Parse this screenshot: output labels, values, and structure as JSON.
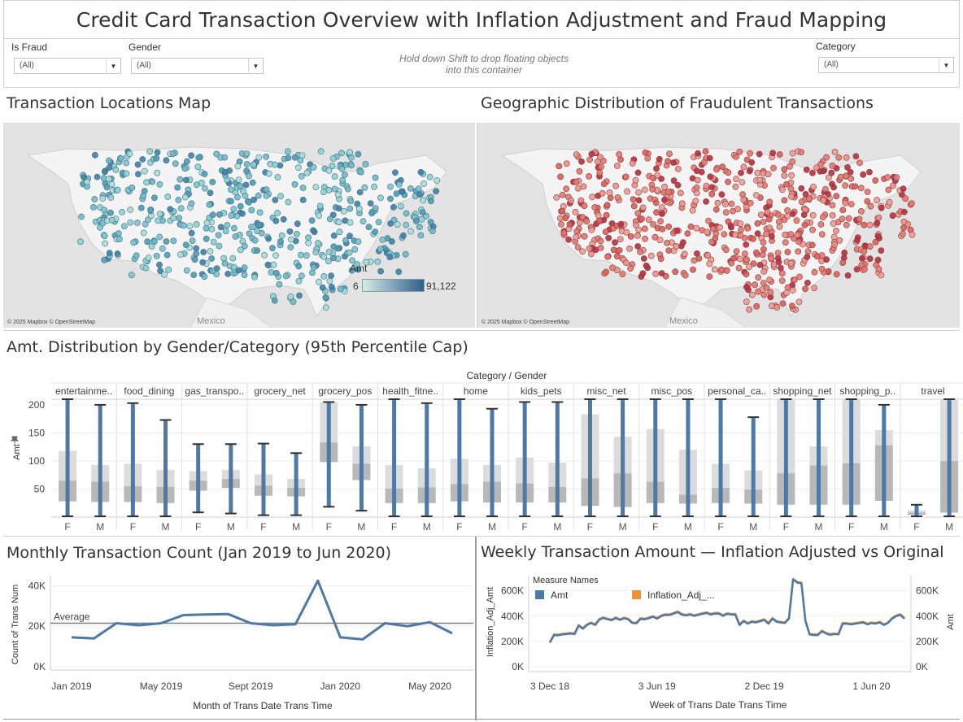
{
  "header": {
    "title": "Credit Card Transaction Overview with Inflation Adjustment and Fraud Mapping"
  },
  "filters": {
    "is_fraud": {
      "label": "Is Fraud",
      "value": "(All)"
    },
    "gender": {
      "label": "Gender",
      "value": "(All)"
    },
    "category": {
      "label": "Category",
      "value": "(All)"
    },
    "hint": "Hold down Shift to drop floating objects into this container"
  },
  "map_left": {
    "title": "Transaction Locations Map",
    "credit": "© 2025 Mapbox © OpenStreetMap",
    "mexico_label": "Mexico",
    "legend": {
      "title": "Amt",
      "min_label": "6",
      "max_label": "91,122",
      "color_low": "#d4ece8",
      "color_high": "#2f5f8a"
    }
  },
  "map_right": {
    "title": "Geographic Distribution of Fraudulent Transactions",
    "credit": "© 2025 Mapbox © OpenStreetMap",
    "mexico_label": "Mexico",
    "point_color": "#e07b72",
    "point_color_dark": "#b5303f"
  },
  "boxplot": {
    "title": "Amt. Distribution by Gender/Category (95th Percentile Cap)",
    "header": "Category / Gender",
    "y_axis_label": "Amt",
    "pin_icon": "pin-icon",
    "ticks": [
      50,
      100,
      150,
      200
    ],
    "ylim": [
      0,
      210
    ],
    "box_color": "#4e79a7",
    "categories": [
      {
        "name": "entertainme..",
        "F": {
          "q1": 28,
          "med": 65,
          "q3": 118,
          "wlo": 0,
          "whi": 210
        },
        "M": {
          "q1": 27,
          "med": 63,
          "q3": 93,
          "wlo": 0,
          "whi": 200
        }
      },
      {
        "name": "food_dining",
        "F": {
          "q1": 27,
          "med": 55,
          "q3": 95,
          "wlo": 0,
          "whi": 203
        },
        "M": {
          "q1": 25,
          "med": 54,
          "q3": 84,
          "wlo": 0,
          "whi": 173
        }
      },
      {
        "name": "gas_transpo..",
        "F": {
          "q1": 47,
          "med": 65,
          "q3": 82,
          "wlo": 7,
          "whi": 130
        },
        "M": {
          "q1": 52,
          "med": 68,
          "q3": 84,
          "wlo": 5,
          "whi": 130
        }
      },
      {
        "name": "grocery_net",
        "F": {
          "q1": 38,
          "med": 56,
          "q3": 76,
          "wlo": 2,
          "whi": 131
        },
        "M": {
          "q1": 37,
          "med": 52,
          "q3": 68,
          "wlo": 2,
          "whi": 114
        }
      },
      {
        "name": "grocery_pos",
        "F": {
          "q1": 98,
          "med": 133,
          "q3": 205,
          "wlo": 17,
          "whi": 205
        },
        "M": {
          "q1": 66,
          "med": 95,
          "q3": 126,
          "wlo": 10,
          "whi": 200
        }
      },
      {
        "name": "health_fitne..",
        "F": {
          "q1": 25,
          "med": 51,
          "q3": 93,
          "wlo": 0,
          "whi": 210
        },
        "M": {
          "q1": 25,
          "med": 53,
          "q3": 87,
          "wlo": 0,
          "whi": 203
        }
      },
      {
        "name": "home",
        "F": {
          "q1": 28,
          "med": 59,
          "q3": 104,
          "wlo": 0,
          "whi": 210
        },
        "M": {
          "q1": 26,
          "med": 63,
          "q3": 93,
          "wlo": 0,
          "whi": 193
        }
      },
      {
        "name": "kids_pets",
        "F": {
          "q1": 26,
          "med": 60,
          "q3": 106,
          "wlo": 0,
          "whi": 205
        },
        "M": {
          "q1": 26,
          "med": 54,
          "q3": 97,
          "wlo": 0,
          "whi": 205
        }
      },
      {
        "name": "misc_net",
        "F": {
          "q1": 20,
          "med": 69,
          "q3": 183,
          "wlo": 0,
          "whi": 210
        },
        "M": {
          "q1": 18,
          "med": 78,
          "q3": 143,
          "wlo": 0,
          "whi": 210
        }
      },
      {
        "name": "misc_pos",
        "F": {
          "q1": 25,
          "med": 63,
          "q3": 157,
          "wlo": 0,
          "whi": 210
        },
        "M": {
          "q1": 24,
          "med": 40,
          "q3": 120,
          "wlo": 0,
          "whi": 210
        }
      },
      {
        "name": "personal_ca..",
        "F": {
          "q1": 25,
          "med": 52,
          "q3": 95,
          "wlo": 0,
          "whi": 210
        },
        "M": {
          "q1": 24,
          "med": 49,
          "q3": 83,
          "wlo": 0,
          "whi": 178
        }
      },
      {
        "name": "shopping_net",
        "F": {
          "q1": 22,
          "med": 78,
          "q3": 210,
          "wlo": 0,
          "whi": 210
        },
        "M": {
          "q1": 22,
          "med": 92,
          "q3": 126,
          "wlo": 0,
          "whi": 210
        }
      },
      {
        "name": "shopping_p..",
        "F": {
          "q1": 22,
          "med": 96,
          "q3": 210,
          "wlo": 0,
          "whi": 210
        },
        "M": {
          "q1": 29,
          "med": 128,
          "q3": 155,
          "wlo": 0,
          "whi": 200
        }
      },
      {
        "name": "travel",
        "F": {
          "q1": 4,
          "med": 8,
          "q3": 12,
          "wlo": 0,
          "whi": 22
        },
        "M": {
          "q1": 8,
          "med": 100,
          "q3": 210,
          "wlo": 0,
          "whi": 210
        }
      }
    ],
    "genders": [
      "F",
      "M"
    ]
  },
  "monthly": {
    "title": "Monthly Transaction Count (Jan 2019 to Jun 2020)",
    "x_axis_label": "Month of Trans Date Trans Time",
    "y_axis_label": "Count of Trans Num",
    "average_label": "Average",
    "average_value": 21500
  },
  "weekly": {
    "title": "Weekly Transaction Amount — Inflation Adjusted vs Original",
    "x_axis_label": "Week of Trans Date Trans Time",
    "y_left_label": "Inflation_Adj_Amt",
    "y_right_label": "Amt",
    "legend_title": "Measure Names",
    "legend_items": [
      {
        "label": "Amt",
        "color": "#4e79a7"
      },
      {
        "label": "Inflation_Adj_...",
        "color": "#f28e2b"
      }
    ]
  },
  "chart_data": [
    {
      "type": "line",
      "title": "Monthly Transaction Count (Jan 2019 to Jun 2020)",
      "xlabel": "Month of Trans Date Trans Time",
      "ylabel": "Count of Trans Num",
      "x": [
        "Jan 2019",
        "Feb 2019",
        "Mar 2019",
        "Apr 2019",
        "May 2019",
        "Jun 2019",
        "Jul 2019",
        "Aug 2019",
        "Sep 2019",
        "Oct 2019",
        "Nov 2019",
        "Dec 2019",
        "Jan 2020",
        "Feb 2020",
        "Mar 2020",
        "Apr 2020",
        "May 2020",
        "Jun 2020"
      ],
      "x_tick_labels": [
        "Jan 2019",
        "May 2019",
        "Sept 2019",
        "Jan 2020",
        "May 2020"
      ],
      "x_tick_index": [
        0,
        4,
        8,
        12,
        16
      ],
      "series": [
        {
          "values": [
            14500,
            14000,
            21500,
            20500,
            21500,
            25500,
            25800,
            26000,
            21500,
            20500,
            21000,
            42500,
            14500,
            13500,
            21500,
            20000,
            22000,
            16500
          ]
        }
      ],
      "ylim": [
        0,
        45000
      ],
      "y_ticks": [
        0,
        20000,
        40000
      ],
      "y_tick_labels": [
        "0K",
        "20K",
        "40K"
      ],
      "reference_line": {
        "label": "Average",
        "value": 21500
      },
      "color": "#4e79a7"
    },
    {
      "type": "line",
      "title": "Weekly Transaction Amount — Inflation Adjusted vs Original",
      "xlabel": "Week of Trans Date Trans Time",
      "ylabel": "Inflation_Adj_Amt",
      "x_tick_labels": [
        "3 Dec 18",
        "3 Jun 19",
        "2 Dec 19",
        "1 Jun 20"
      ],
      "x_tick_index": [
        0,
        26,
        52,
        78
      ],
      "series": [
        {
          "name": "Amt",
          "values": [
            190000,
            250000,
            248000,
            255000,
            258000,
            262000,
            258000,
            325000,
            300000,
            330000,
            345000,
            330000,
            372000,
            385000,
            375000,
            368000,
            385000,
            370000,
            383000,
            375000,
            345000,
            343000,
            378000,
            375000,
            383000,
            395000,
            380000,
            400000,
            410000,
            408000,
            420000,
            432000,
            412000,
            405000,
            413000,
            402000,
            410000,
            418000,
            425000,
            412000,
            420000,
            420000,
            402000,
            418000,
            412000,
            412000,
            330000,
            360000,
            340000,
            355000,
            350000,
            360000,
            370000,
            340000,
            380000,
            355000,
            350000,
            345000,
            380000,
            690000,
            665000,
            660000,
            360000,
            255000,
            250000,
            250000,
            280000,
            262000,
            252000,
            258000,
            255000,
            340000,
            340000,
            335000,
            340000,
            345000,
            350000,
            335000,
            345000,
            340000,
            350000,
            330000,
            345000,
            380000,
            400000,
            410000,
            380000
          ]
        },
        {
          "name": "Inflation_Adj_...",
          "values": [
            195000,
            255000,
            253000,
            260000,
            263000,
            267000,
            263000,
            330000,
            305000,
            335000,
            350000,
            335000,
            377000,
            390000,
            380000,
            373000,
            390000,
            375000,
            388000,
            380000,
            350000,
            348000,
            383000,
            380000,
            388000,
            400000,
            385000,
            405000,
            415000,
            413000,
            425000,
            437000,
            417000,
            410000,
            418000,
            407000,
            415000,
            423000,
            430000,
            417000,
            425000,
            425000,
            407000,
            423000,
            417000,
            417000,
            335000,
            365000,
            345000,
            360000,
            355000,
            365000,
            375000,
            345000,
            385000,
            360000,
            355000,
            350000,
            385000,
            695000,
            670000,
            665000,
            365000,
            260000,
            255000,
            255000,
            285000,
            267000,
            257000,
            263000,
            260000,
            345000,
            345000,
            340000,
            345000,
            350000,
            355000,
            340000,
            350000,
            345000,
            355000,
            335000,
            350000,
            385000,
            405000,
            415000,
            385000
          ]
        }
      ],
      "ylim": [
        0,
        720000
      ],
      "y_ticks": [
        0,
        200000,
        400000,
        600000
      ],
      "y_tick_labels": [
        "0K",
        "200K",
        "400K",
        "600K"
      ]
    }
  ]
}
